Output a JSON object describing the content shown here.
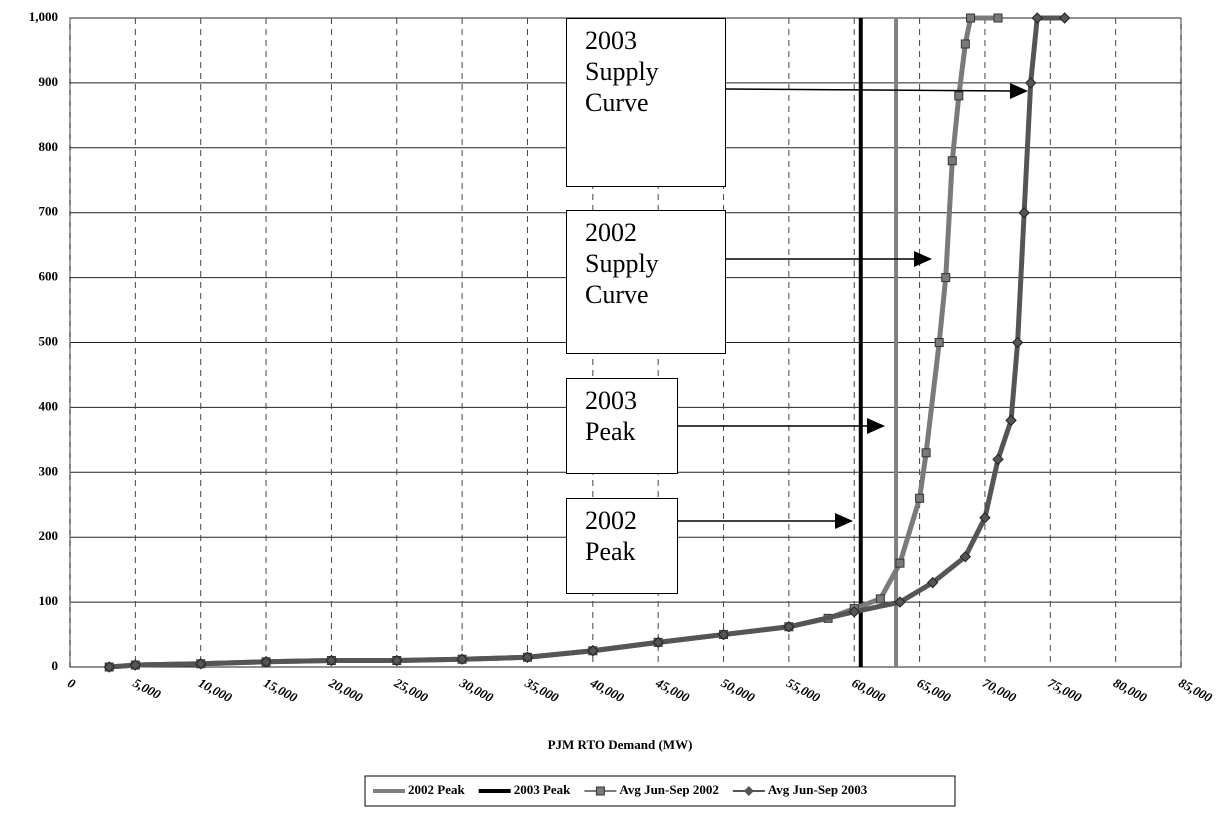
{
  "chart_data": {
    "type": "line",
    "xlabel": "PJM RTO Demand (MW)",
    "xlim": [
      0,
      85000
    ],
    "xticks": [
      0,
      {
        "value": 5000,
        "label": "5,000"
      },
      {
        "value": 10000,
        "label": "10,000"
      },
      {
        "value": 15000,
        "label": "15,000"
      },
      {
        "value": 20000,
        "label": "20,000"
      },
      {
        "value": 25000,
        "label": "25,000"
      },
      {
        "value": 30000,
        "label": "30,000"
      },
      {
        "value": 35000,
        "label": "35,000"
      },
      {
        "value": 40000,
        "label": "40,000"
      },
      {
        "value": 45000,
        "label": "45,000"
      },
      {
        "value": 50000,
        "label": "50,000"
      },
      {
        "value": 55000,
        "label": "55,000"
      },
      {
        "value": 60000,
        "label": "60,000"
      },
      {
        "value": 65000,
        "label": "65,000"
      },
      {
        "value": 70000,
        "label": "70,000"
      },
      {
        "value": 75000,
        "label": "75,000"
      },
      {
        "value": 80000,
        "label": "80,000"
      },
      {
        "value": 85000,
        "label": "85,000"
      }
    ],
    "ylim": [
      0,
      1000
    ],
    "yticks": [
      0,
      100,
      200,
      300,
      400,
      500,
      600,
      700,
      800,
      900,
      {
        "value": 1000,
        "label": "1,000"
      }
    ],
    "grid": true,
    "series": [
      {
        "name": "2002 Peak",
        "color": "#808080",
        "marker": "none",
        "x": [
          63200,
          63200
        ],
        "values": [
          0,
          1000
        ]
      },
      {
        "name": "2003 Peak",
        "color": "#000000",
        "marker": "none",
        "x": [
          60500,
          60500
        ],
        "values": [
          0,
          1000
        ]
      },
      {
        "name": "Avg Jun-Sep 2002",
        "color": "#7a7a7a",
        "marker": "square",
        "x": [
          3000,
          5000,
          10000,
          15000,
          20000,
          25000,
          30000,
          35000,
          40000,
          45000,
          50000,
          55000,
          58000,
          60000,
          62000,
          63500,
          65000,
          65500,
          66500,
          67000,
          67500,
          68000,
          68500,
          68900,
          71000
        ],
        "values": [
          0,
          3,
          5,
          8,
          10,
          10,
          12,
          15,
          25,
          38,
          50,
          62,
          75,
          90,
          105,
          160,
          260,
          330,
          500,
          600,
          780,
          880,
          960,
          1000,
          1000
        ]
      },
      {
        "name": "Avg Jun-Sep 2003",
        "color": "#555555",
        "marker": "diamond",
        "x": [
          3000,
          5000,
          10000,
          15000,
          20000,
          25000,
          30000,
          35000,
          40000,
          45000,
          50000,
          55000,
          60000,
          63500,
          66000,
          68500,
          70000,
          71000,
          72000,
          72500,
          73000,
          73500,
          74000,
          76100
        ],
        "values": [
          0,
          3,
          5,
          8,
          10,
          10,
          12,
          15,
          25,
          38,
          50,
          62,
          85,
          100,
          130,
          170,
          230,
          320,
          380,
          500,
          700,
          900,
          1000,
          1000
        ]
      }
    ],
    "annotations": [
      {
        "text": "2003 Supply Curve"
      },
      {
        "text": "2002 Supply Curve"
      },
      {
        "text": "2003 Peak"
      },
      {
        "text": "2002 Peak"
      }
    ]
  }
}
